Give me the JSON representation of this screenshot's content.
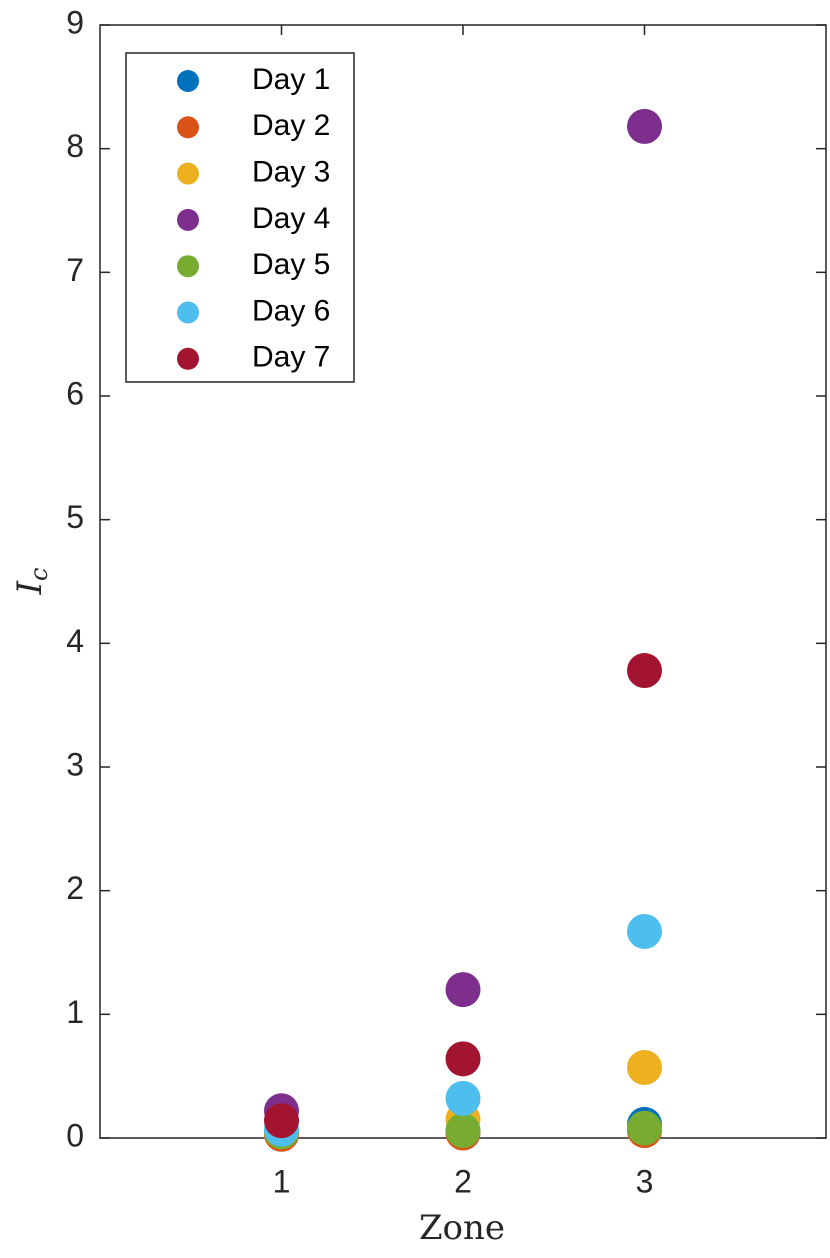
{
  "chart_data": {
    "type": "scatter",
    "xlabel": "Zone",
    "ylabel": [
      "I",
      "c"
    ],
    "x": [
      1,
      2,
      3
    ],
    "xlim": [
      0,
      4
    ],
    "xticks": [
      1,
      2,
      3
    ],
    "ylim": [
      0,
      9
    ],
    "yticks": [
      0,
      1,
      2,
      3,
      4,
      5,
      6,
      7,
      8,
      9
    ],
    "legend": "upper left",
    "series": [
      {
        "name": "Day 1",
        "color": "#0072BD",
        "values": [
          0.05,
          0.05,
          0.11
        ]
      },
      {
        "name": "Day 2",
        "color": "#D95319",
        "values": [
          0.03,
          0.04,
          0.06
        ]
      },
      {
        "name": "Day 3",
        "color": "#EDB120",
        "values": [
          0.05,
          0.15,
          0.57
        ]
      },
      {
        "name": "Day 4",
        "color": "#7E2F8E",
        "values": [
          0.22,
          1.2,
          8.18
        ]
      },
      {
        "name": "Day 5",
        "color": "#77AC30",
        "values": [
          0.05,
          0.06,
          0.08
        ]
      },
      {
        "name": "Day 6",
        "color": "#4DBEEE",
        "values": [
          0.07,
          0.32,
          1.67
        ]
      },
      {
        "name": "Day 7",
        "color": "#A2142F",
        "values": [
          0.14,
          0.64,
          3.78
        ]
      }
    ]
  }
}
